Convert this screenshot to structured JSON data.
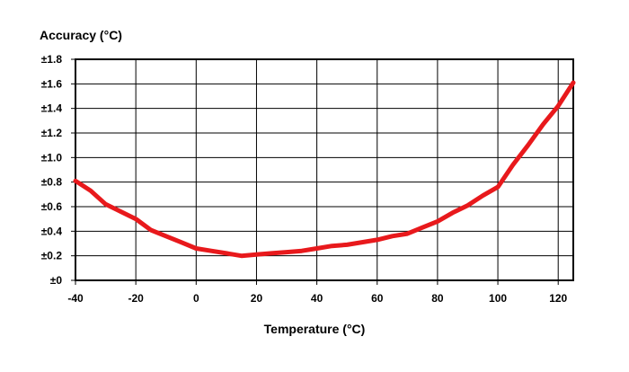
{
  "chart_data": {
    "type": "line",
    "ylabel": "Accuracy (°C)",
    "xlabel": "Temperature (°C)",
    "xlim": [
      -40,
      125
    ],
    "ylim": [
      0,
      1.8
    ],
    "grid": true,
    "line_color": "#e8191c",
    "x_ticks": [
      -40,
      -20,
      0,
      20,
      40,
      60,
      80,
      100,
      120
    ],
    "x_tick_labels": [
      "-40",
      "-20",
      "0",
      "20",
      "40",
      "60",
      "80",
      "100",
      "120"
    ],
    "y_ticks": [
      0,
      0.2,
      0.4,
      0.6,
      0.8,
      1.0,
      1.2,
      1.4,
      1.6,
      1.8
    ],
    "y_tick_labels": [
      "±0",
      "±0.2",
      "±0.4",
      "±0.6",
      "±0.8",
      "±1.0",
      "±1.2",
      "±1.4",
      "±1.6",
      "±1.8"
    ],
    "series": [
      {
        "x": [
          -40,
          -35,
          -30,
          -25,
          -20,
          -15,
          -10,
          -5,
          0,
          5,
          10,
          15,
          20,
          25,
          30,
          35,
          40,
          45,
          50,
          55,
          60,
          65,
          70,
          75,
          80,
          85,
          90,
          95,
          100,
          105,
          110,
          115,
          120,
          125
        ],
        "y": [
          0.81,
          0.73,
          0.62,
          0.56,
          0.5,
          0.41,
          0.36,
          0.31,
          0.26,
          0.24,
          0.22,
          0.2,
          0.21,
          0.22,
          0.23,
          0.24,
          0.26,
          0.28,
          0.29,
          0.31,
          0.33,
          0.36,
          0.38,
          0.43,
          0.48,
          0.55,
          0.61,
          0.69,
          0.76,
          0.94,
          1.1,
          1.27,
          1.42,
          1.61
        ]
      }
    ]
  }
}
